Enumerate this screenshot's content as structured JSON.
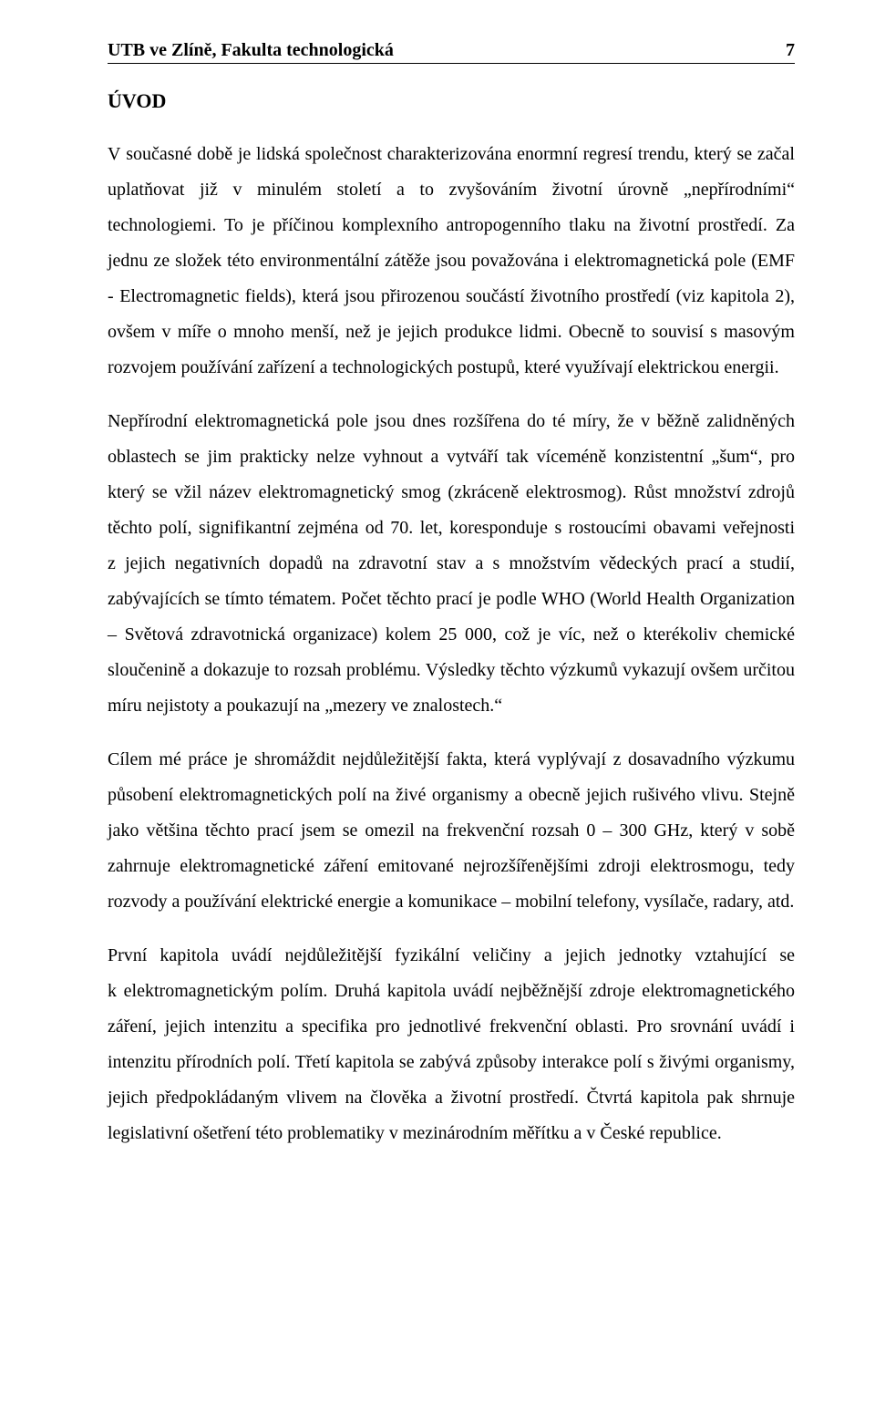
{
  "header": {
    "left": "UTB ve Zlíně, Fakulta technologická",
    "page_number": "7"
  },
  "section_title": "ÚVOD",
  "paragraphs": [
    "V současné době je lidská společnost charakterizována enormní regresí trendu, který se začal uplatňovat již v minulém století a to zvyšováním životní úrovně „nepřírodními“ technologiemi. To je příčinou komplexního antropogenního tlaku na životní prostředí. Za jednu ze složek této environmentální zátěže jsou považována i elektromagnetická pole (EMF - Electromagnetic fields), která jsou přirozenou součástí životního prostředí (viz kapitola 2), ovšem v míře o mnoho menší, než je jejich produkce lidmi. Obecně to souvisí s masovým rozvojem používání zařízení a technologických postupů, které využívají elektrickou energii.",
    "Nepřírodní elektromagnetická pole jsou dnes rozšířena do té míry, že v běžně zalidněných oblastech se jim prakticky nelze vyhnout a vytváří tak víceméně konzistentní „šum“, pro který se vžil název elektromagnetický smog (zkráceně elektrosmog). Růst množství zdrojů těchto polí, signifikantní zejména od 70. let, koresponduje s rostoucími obavami veřejnosti z jejich negativních dopadů na zdravotní stav a s množstvím vědeckých prací a studií, zabývajících se tímto tématem. Počet těchto prací je podle WHO (World Health Organization – Světová zdravotnická organizace) kolem 25 000, což je víc, než o kterékoliv chemické sloučenině a dokazuje to rozsah problému. Výsledky těchto výzkumů vykazují ovšem určitou míru nejistoty a poukazují na „mezery ve znalostech.“",
    "Cílem mé práce je shromáždit nejdůležitější fakta, která vyplývají z dosavadního výzkumu působení elektromagnetických polí na živé organismy a obecně jejich rušivého vlivu. Stejně jako většina těchto prací jsem se omezil na frekvenční rozsah 0 – 300 GHz, který v sobě zahrnuje elektromagnetické záření emitované nejrozšířenějšími zdroji elektrosmogu, tedy rozvody a používání elektrické energie a komunikace – mobilní telefony, vysílače, radary, atd.",
    "První kapitola uvádí nejdůležitější fyzikální veličiny a jejich jednotky vztahující se k elektromagnetickým polím. Druhá kapitola uvádí nejběžnější zdroje elektromagnetického záření, jejich intenzitu a specifika pro jednotlivé frekvenční oblasti. Pro srovnání uvádí i intenzitu přírodních polí. Třetí kapitola se zabývá způsoby interakce polí s živými organismy, jejich předpokládaným vlivem na člověka a životní prostředí. Čtvrtá kapitola pak shrnuje legislativní ošetření této problematiky v mezinárodním měřítku a v České republice."
  ]
}
